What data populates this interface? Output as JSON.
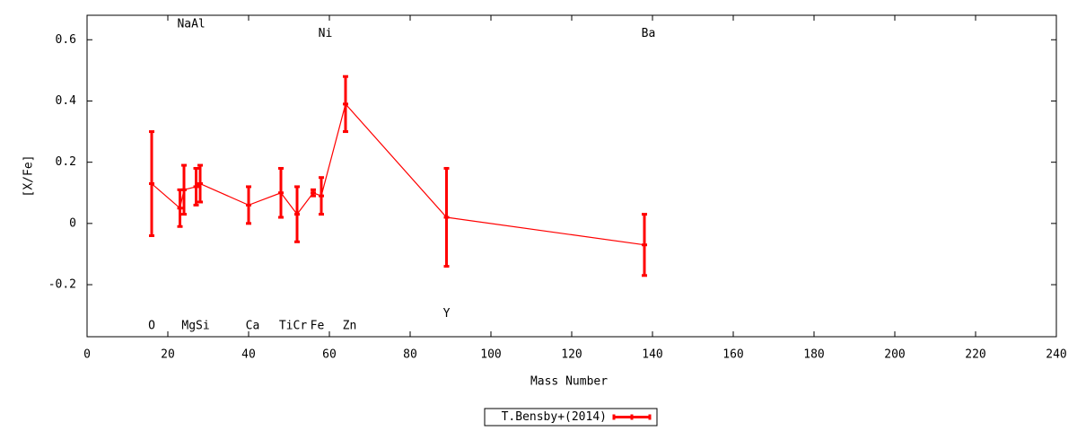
{
  "chart_data": {
    "type": "errorbar-line",
    "xlabel": "Mass Number",
    "ylabel": "[X/Fe]",
    "xlim": [
      0,
      240
    ],
    "ylim": [
      -0.37,
      0.68
    ],
    "xticks": [
      0,
      20,
      40,
      60,
      80,
      100,
      120,
      140,
      160,
      180,
      200,
      220,
      240
    ],
    "yticks": [
      -0.2,
      0,
      0.2,
      0.4,
      0.6
    ],
    "x": [
      16,
      23,
      24,
      27,
      28,
      40,
      48,
      52,
      56,
      58,
      64,
      89,
      138
    ],
    "series": [
      {
        "name": "T.Bensby+(2014)",
        "color": "#ff0000",
        "values": [
          0.13,
          0.05,
          0.11,
          0.12,
          0.13,
          0.06,
          0.1,
          0.03,
          0.1,
          0.09,
          0.39,
          0.02,
          -0.07
        ],
        "errors": [
          0.17,
          0.06,
          0.08,
          0.06,
          0.06,
          0.06,
          0.08,
          0.09,
          0.01,
          0.06,
          0.09,
          0.16,
          0.1
        ]
      }
    ],
    "annotations": [
      {
        "text": "NaAl",
        "x": 25.8,
        "y": 0.65
      },
      {
        "text": "Ni",
        "x": 59,
        "y": 0.62
      },
      {
        "text": "Ba",
        "x": 139,
        "y": 0.62
      },
      {
        "text": "O",
        "x": 16,
        "y": -0.335
      },
      {
        "text": "MgSi",
        "x": 26.9,
        "y": -0.335
      },
      {
        "text": "Ca",
        "x": 41,
        "y": -0.335
      },
      {
        "text": "TiCr",
        "x": 51,
        "y": -0.335
      },
      {
        "text": "Fe",
        "x": 57,
        "y": -0.335
      },
      {
        "text": "Zn",
        "x": 65,
        "y": -0.335
      },
      {
        "text": "Y",
        "x": 89,
        "y": -0.295
      }
    ],
    "legend": "bottom-center"
  }
}
